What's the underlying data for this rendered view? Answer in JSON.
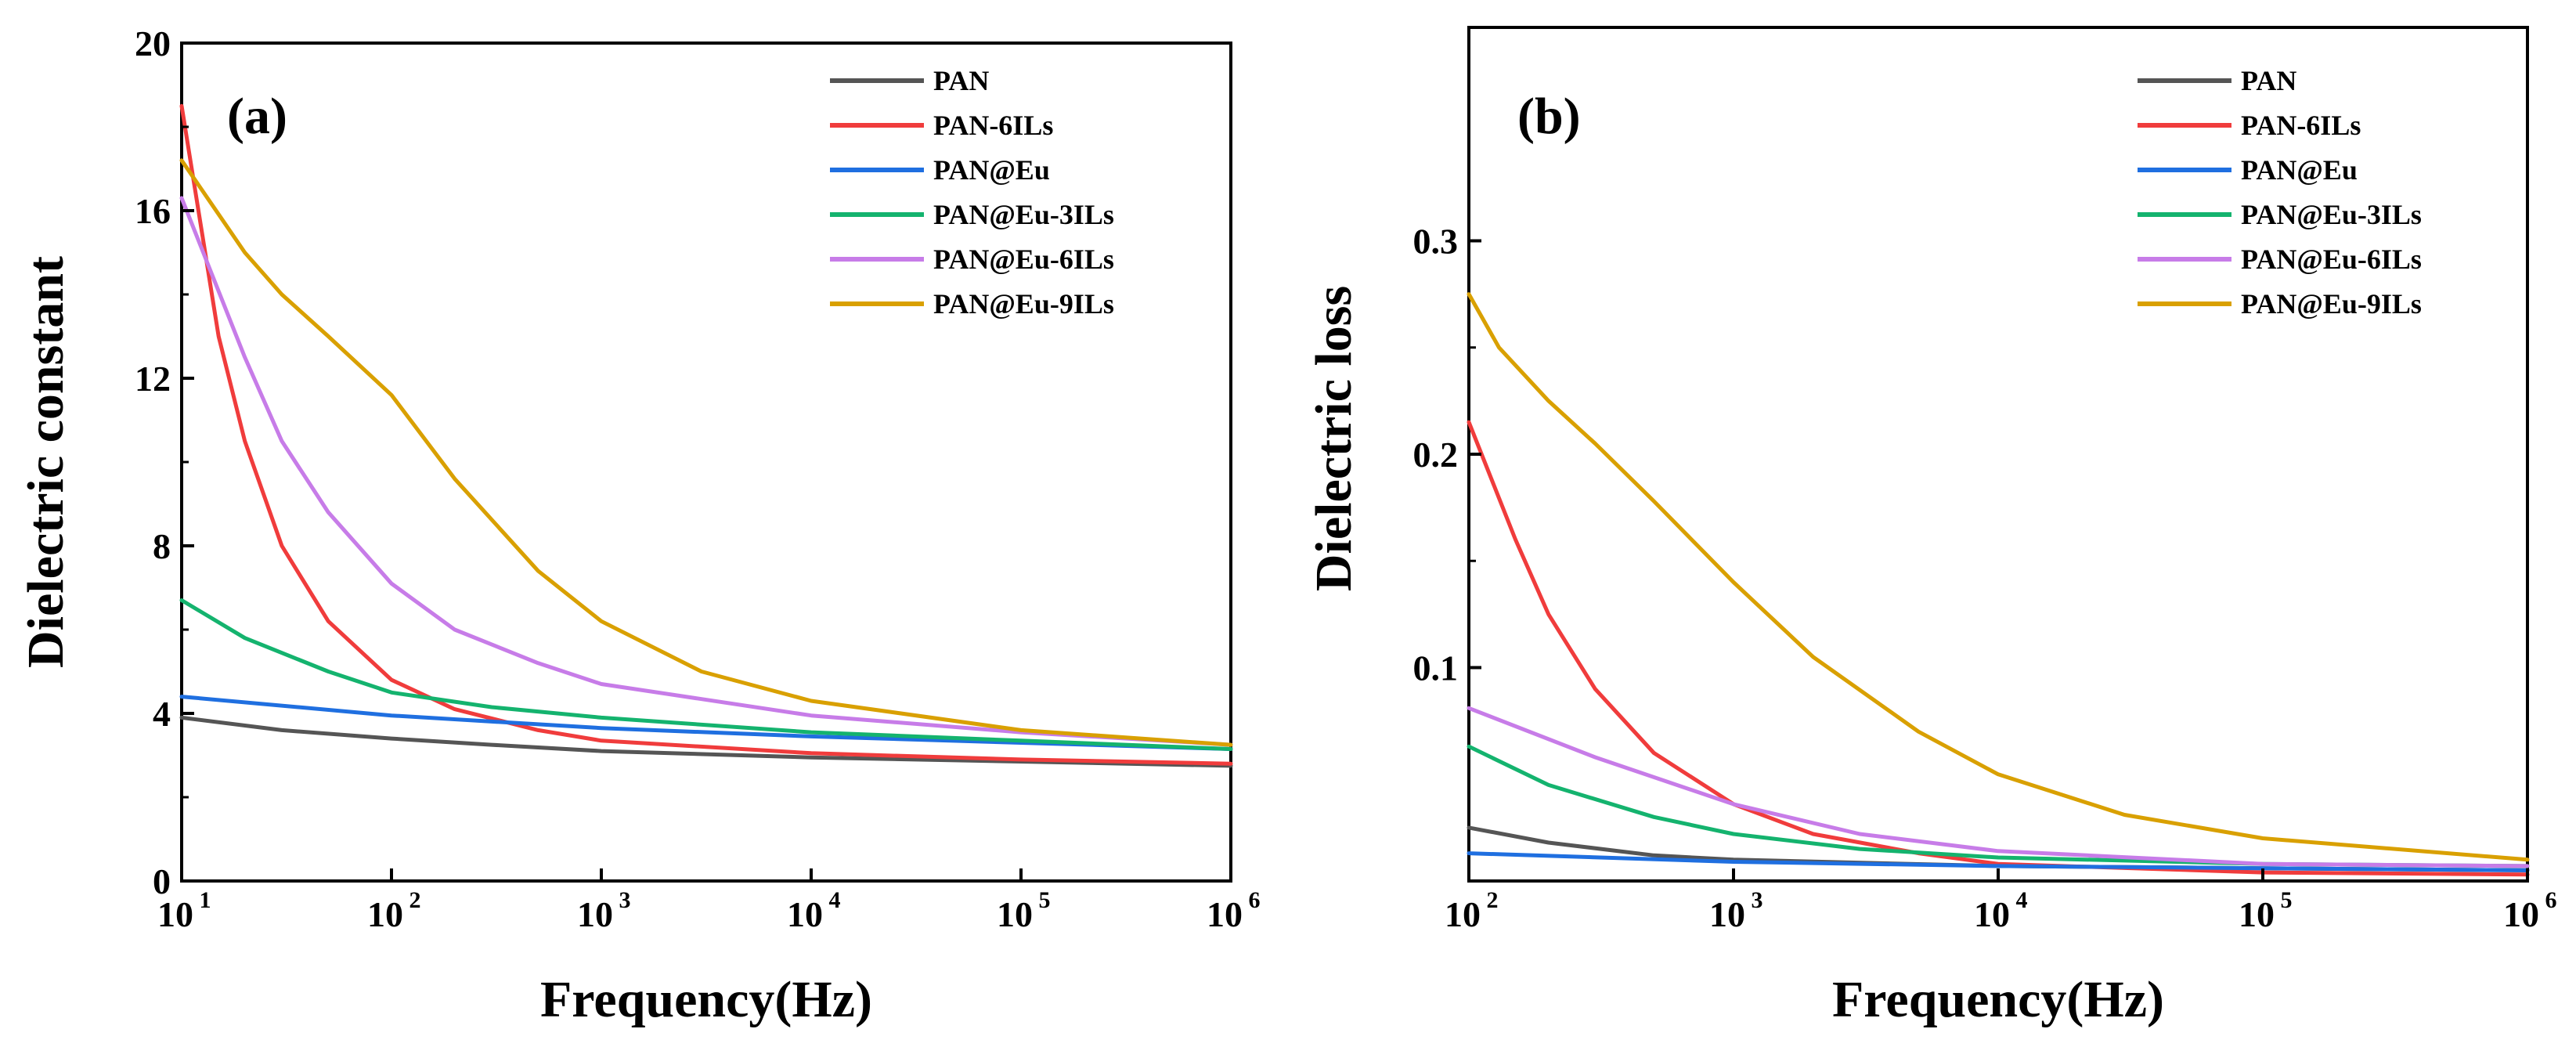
{
  "chart_data": [
    {
      "type": "line",
      "panel_label": "(a)",
      "xlabel": "Frequency(Hz)",
      "ylabel": "Dielectric constant",
      "xscale": "log",
      "xlim": [
        10,
        1000000
      ],
      "ylim": [
        0,
        20
      ],
      "yticks": [
        "0",
        "4",
        "8",
        "12",
        "16",
        "20"
      ],
      "ytick_values": [
        0,
        4,
        8,
        12,
        16,
        20
      ],
      "xticks_base": "10",
      "xticks_exp": [
        "1",
        "2",
        "3",
        "4",
        "5",
        "6"
      ],
      "xtick_values": [
        10,
        100,
        1000,
        10000,
        100000,
        1000000
      ],
      "legend_position": "top-right",
      "series": [
        {
          "name": "PAN",
          "color": "#555555",
          "x": [
            10,
            30,
            100,
            300,
            1000,
            10000,
            100000,
            1000000
          ],
          "y": [
            3.9,
            3.6,
            3.4,
            3.25,
            3.1,
            2.95,
            2.85,
            2.75
          ]
        },
        {
          "name": "PAN-6ILs",
          "color": "#f03c3c",
          "x": [
            10,
            15,
            20,
            30,
            50,
            100,
            200,
            500,
            1000,
            10000,
            100000,
            1000000
          ],
          "y": [
            18.5,
            13,
            10.5,
            8,
            6.2,
            4.8,
            4.1,
            3.6,
            3.35,
            3.05,
            2.9,
            2.8
          ]
        },
        {
          "name": "PAN@Eu",
          "color": "#1f6fe0",
          "x": [
            10,
            100,
            1000,
            10000,
            100000,
            1000000
          ],
          "y": [
            4.4,
            3.95,
            3.65,
            3.45,
            3.3,
            3.15
          ]
        },
        {
          "name": "PAN@Eu-3ILs",
          "color": "#14b36e",
          "x": [
            10,
            20,
            50,
            100,
            300,
            1000,
            10000,
            100000,
            1000000
          ],
          "y": [
            6.7,
            5.8,
            5.0,
            4.5,
            4.15,
            3.9,
            3.55,
            3.35,
            3.15
          ]
        },
        {
          "name": "PAN@Eu-6ILs",
          "color": "#c77ce8",
          "x": [
            10,
            20,
            30,
            50,
            100,
            200,
            500,
            1000,
            10000,
            100000,
            1000000
          ],
          "y": [
            16.3,
            12.5,
            10.5,
            8.8,
            7.1,
            6.0,
            5.2,
            4.7,
            3.95,
            3.55,
            3.25
          ]
        },
        {
          "name": "PAN@Eu-9ILs",
          "color": "#d9a000",
          "x": [
            10,
            20,
            30,
            50,
            100,
            200,
            500,
            1000,
            3000,
            10000,
            100000,
            1000000
          ],
          "y": [
            17.2,
            15.0,
            14.0,
            13.0,
            11.6,
            9.6,
            7.4,
            6.2,
            5.0,
            4.3,
            3.6,
            3.25
          ]
        }
      ]
    },
    {
      "type": "line",
      "panel_label": "(b)",
      "xlabel": "Frequency(Hz)",
      "ylabel": "Dielectric loss",
      "xscale": "log",
      "xlim": [
        100,
        1000000
      ],
      "ylim": [
        0,
        0.4
      ],
      "yticks": [
        "0.1",
        "0.2",
        "0.3"
      ],
      "ytick_values": [
        0.1,
        0.2,
        0.3
      ],
      "xticks_base": "10",
      "xticks_exp": [
        "2",
        "3",
        "4",
        "5",
        "6"
      ],
      "xtick_values": [
        100,
        1000,
        10000,
        100000,
        1000000
      ],
      "legend_position": "top-right",
      "series": [
        {
          "name": "PAN",
          "color": "#555555",
          "x": [
            100,
            200,
            500,
            1000,
            10000,
            100000,
            1000000
          ],
          "y": [
            0.025,
            0.018,
            0.012,
            0.01,
            0.007,
            0.006,
            0.005
          ]
        },
        {
          "name": "PAN-6ILs",
          "color": "#f03c3c",
          "x": [
            100,
            150,
            200,
            300,
            500,
            1000,
            2000,
            5000,
            10000,
            100000,
            1000000
          ],
          "y": [
            0.215,
            0.16,
            0.125,
            0.09,
            0.06,
            0.036,
            0.022,
            0.013,
            0.008,
            0.004,
            0.003
          ]
        },
        {
          "name": "PAN@Eu",
          "color": "#1f6fe0",
          "x": [
            100,
            1000,
            10000,
            100000,
            1000000
          ],
          "y": [
            0.013,
            0.009,
            0.007,
            0.006,
            0.005
          ]
        },
        {
          "name": "PAN@Eu-3ILs",
          "color": "#14b36e",
          "x": [
            100,
            200,
            500,
            1000,
            3000,
            10000,
            100000,
            1000000
          ],
          "y": [
            0.063,
            0.045,
            0.03,
            0.022,
            0.015,
            0.011,
            0.008,
            0.007
          ]
        },
        {
          "name": "PAN@Eu-6ILs",
          "color": "#c77ce8",
          "x": [
            100,
            300,
            1000,
            3000,
            10000,
            100000,
            1000000
          ],
          "y": [
            0.081,
            0.058,
            0.036,
            0.022,
            0.014,
            0.008,
            0.007
          ]
        },
        {
          "name": "PAN@Eu-9ILs",
          "color": "#d9a000",
          "x": [
            100,
            130,
            200,
            300,
            500,
            1000,
            2000,
            5000,
            10000,
            30000,
            100000,
            1000000
          ],
          "y": [
            0.275,
            0.25,
            0.225,
            0.205,
            0.178,
            0.14,
            0.105,
            0.07,
            0.05,
            0.031,
            0.02,
            0.01
          ]
        }
      ]
    }
  ]
}
